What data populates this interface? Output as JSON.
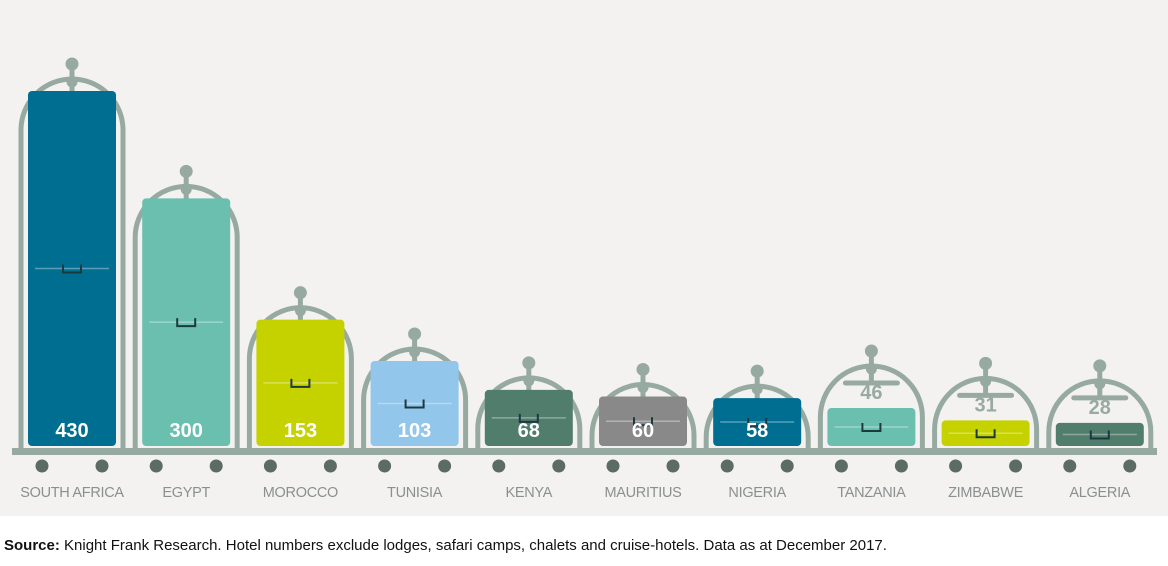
{
  "chart_data": {
    "type": "bar",
    "categories": [
      "SOUTH AFRICA",
      "EGYPT",
      "MOROCCO",
      "TUNISIA",
      "KENYA",
      "MAURITIUS",
      "NIGERIA",
      "TANZANIA",
      "ZIMBABWE",
      "ALGERIA"
    ],
    "values": [
      430,
      300,
      153,
      103,
      68,
      60,
      58,
      46,
      31,
      28
    ],
    "bar_colors": [
      "#006e91",
      "#6abfaf",
      "#c5d200",
      "#92c6ea",
      "#517d6c",
      "#898989",
      "#006e91",
      "#6abfaf",
      "#c5d200",
      "#517d6c"
    ],
    "frame_color": "#97aaa2",
    "ylim": [
      0,
      430
    ],
    "grid": false,
    "legend": "none"
  },
  "source": {
    "label": "Source:",
    "text": " Knight Frank Research. Hotel numbers exclude lodges, safari camps, chalets and cruise-hotels. Data as at December 2017."
  }
}
